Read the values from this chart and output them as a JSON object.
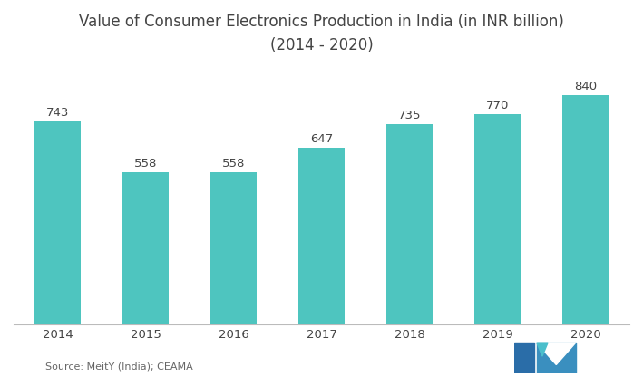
{
  "title_line1": "Value of Consumer Electronics Production in India (in INR billion)",
  "title_line2": "(2014 - 2020)",
  "categories": [
    "2014",
    "2015",
    "2016",
    "2017",
    "2018",
    "2019",
    "2020"
  ],
  "values": [
    743,
    558,
    558,
    647,
    735,
    770,
    840
  ],
  "bar_color": "#4ec5bf",
  "label_color": "#444444",
  "title_fontsize": 12,
  "label_fontsize": 9.5,
  "tick_fontsize": 9.5,
  "source_text": "Source: MeitY (India); CEAMA",
  "ylim": [
    0,
    940
  ],
  "background_color": "#ffffff",
  "bar_width": 0.52,
  "logo_color1": "#2a6da8",
  "logo_color2": "#4bbfcc",
  "logo_color3": "#3a8fbf"
}
